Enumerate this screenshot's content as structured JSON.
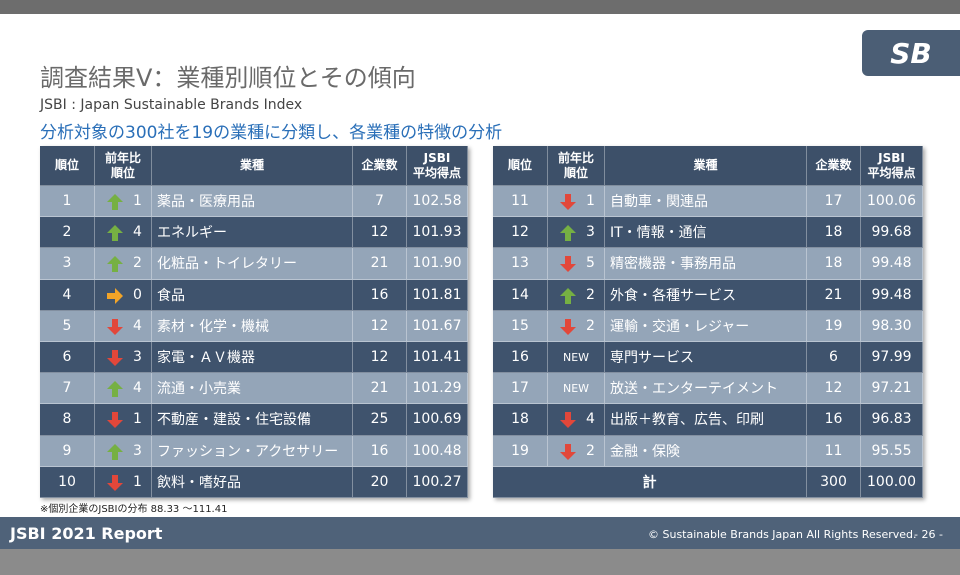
{
  "header": {
    "title": "調査結果Ⅴ：業種別順位とその傾向",
    "subtitle": "JSBI : Japan Sustainable Brands Index",
    "description": "分析対象の300社を19の業種に分類し、各業種の特徴の分析"
  },
  "logo": "SB",
  "tables": [
    {
      "columns": [
        "順位",
        [
          "前年比",
          "順位"
        ],
        "業種",
        "企業数",
        [
          "JSBI",
          "平均得点"
        ]
      ],
      "rows": [
        [
          "1",
          "1",
          "薬品・医療用品",
          "7",
          "102.58"
        ],
        [
          "2",
          "4",
          "エネルギー",
          "12",
          "101.93"
        ],
        [
          "3",
          "2",
          "化粧品・トイレタリー",
          "21",
          "101.90"
        ],
        [
          "4",
          "0",
          "食品",
          "16",
          "101.81"
        ],
        [
          "5",
          "4",
          "素材・化学・機械",
          "12",
          "101.67"
        ],
        [
          "6",
          "3",
          "家電・ＡＶ機器",
          "12",
          "101.41"
        ],
        [
          "7",
          "4",
          "流通・小売業",
          "21",
          "101.29"
        ],
        [
          "8",
          "1",
          "不動産・建設・住宅設備",
          "25",
          "100.69"
        ],
        [
          "9",
          "3",
          "ファッション・アクセサリー",
          "16",
          "100.48"
        ],
        [
          "10",
          "1",
          "飲料・嗜好品",
          "20",
          "100.27"
        ]
      ]
    },
    {
      "columns": [
        "順位",
        [
          "前年比",
          "順位"
        ],
        "業種",
        "企業数",
        [
          "JSBI",
          "平均得点"
        ]
      ],
      "rows": [
        [
          "11",
          "1",
          "自動車・関連品",
          "17",
          "100.06"
        ],
        [
          "12",
          "3",
          "IT・情報・通信",
          "18",
          "99.68"
        ],
        [
          "13",
          "5",
          "精密機器・事務用品",
          "18",
          "99.48"
        ],
        [
          "14",
          "2",
          "外食・各種サービス",
          "21",
          "99.48"
        ],
        [
          "15",
          "2",
          "運輸・交通・レジャー",
          "19",
          "98.30"
        ],
        [
          "16",
          "NEW",
          "専門サービス",
          "6",
          "97.99"
        ],
        [
          "17",
          "NEW",
          "放送・エンターテイメント",
          "12",
          "97.21"
        ],
        [
          "18",
          "4",
          "出版＋教育、広告、印刷",
          "16",
          "96.83"
        ],
        [
          "19",
          "2",
          "金融・保険",
          "11",
          "95.55"
        ]
      ],
      "total": {
        "label": "計",
        "count": "300",
        "score": "100.00"
      }
    }
  ],
  "footnote": "※個別企業のJSBIの分布 88.33 ～111.41",
  "footer": {
    "report": "JSBI 2021 Report",
    "copyright": "© Sustainable Brands Japan  All Rights Reserved.",
    "page": "- 26 -"
  }
}
